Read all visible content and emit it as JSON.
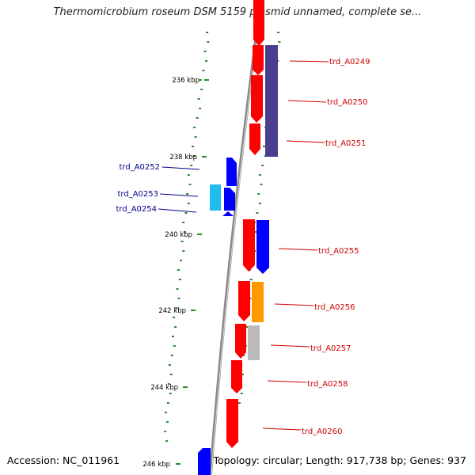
{
  "title": "Thermomicrobium roseum DSM 5159 plasmid unnamed, complete se...",
  "accession": "Accession: NC_011961",
  "summary": "Topology: circular; Length: 917,738 bp; Genes: 937",
  "ticks": [
    "236 kbp",
    "238 kbp",
    "240 kbp",
    "242 kbp",
    "244 kbp",
    "246 kbp"
  ],
  "colors": {
    "forward": "#ff0000",
    "reverse": "#0000ff",
    "navy": "#4a3f8f",
    "cyan": "#22bbee",
    "orange": "#ff9900",
    "gray": "#bbbbbb",
    "backbone": "#8a8a8a",
    "gc": "#2a8a2a",
    "label_red": "#cc0000",
    "label_blue": "#00008b"
  },
  "genes_right": [
    {
      "name": "trd_A0249"
    },
    {
      "name": "trd_A0250"
    },
    {
      "name": "trd_A0251"
    },
    {
      "name": "trd_A0255"
    },
    {
      "name": "trd_A0256"
    },
    {
      "name": "trd_A0257"
    },
    {
      "name": "trd_A0258"
    },
    {
      "name": "trd_A0260"
    }
  ],
  "genes_left": [
    {
      "name": "trd_A0252"
    },
    {
      "name": "trd_A0253"
    },
    {
      "name": "trd_A0254"
    }
  ]
}
